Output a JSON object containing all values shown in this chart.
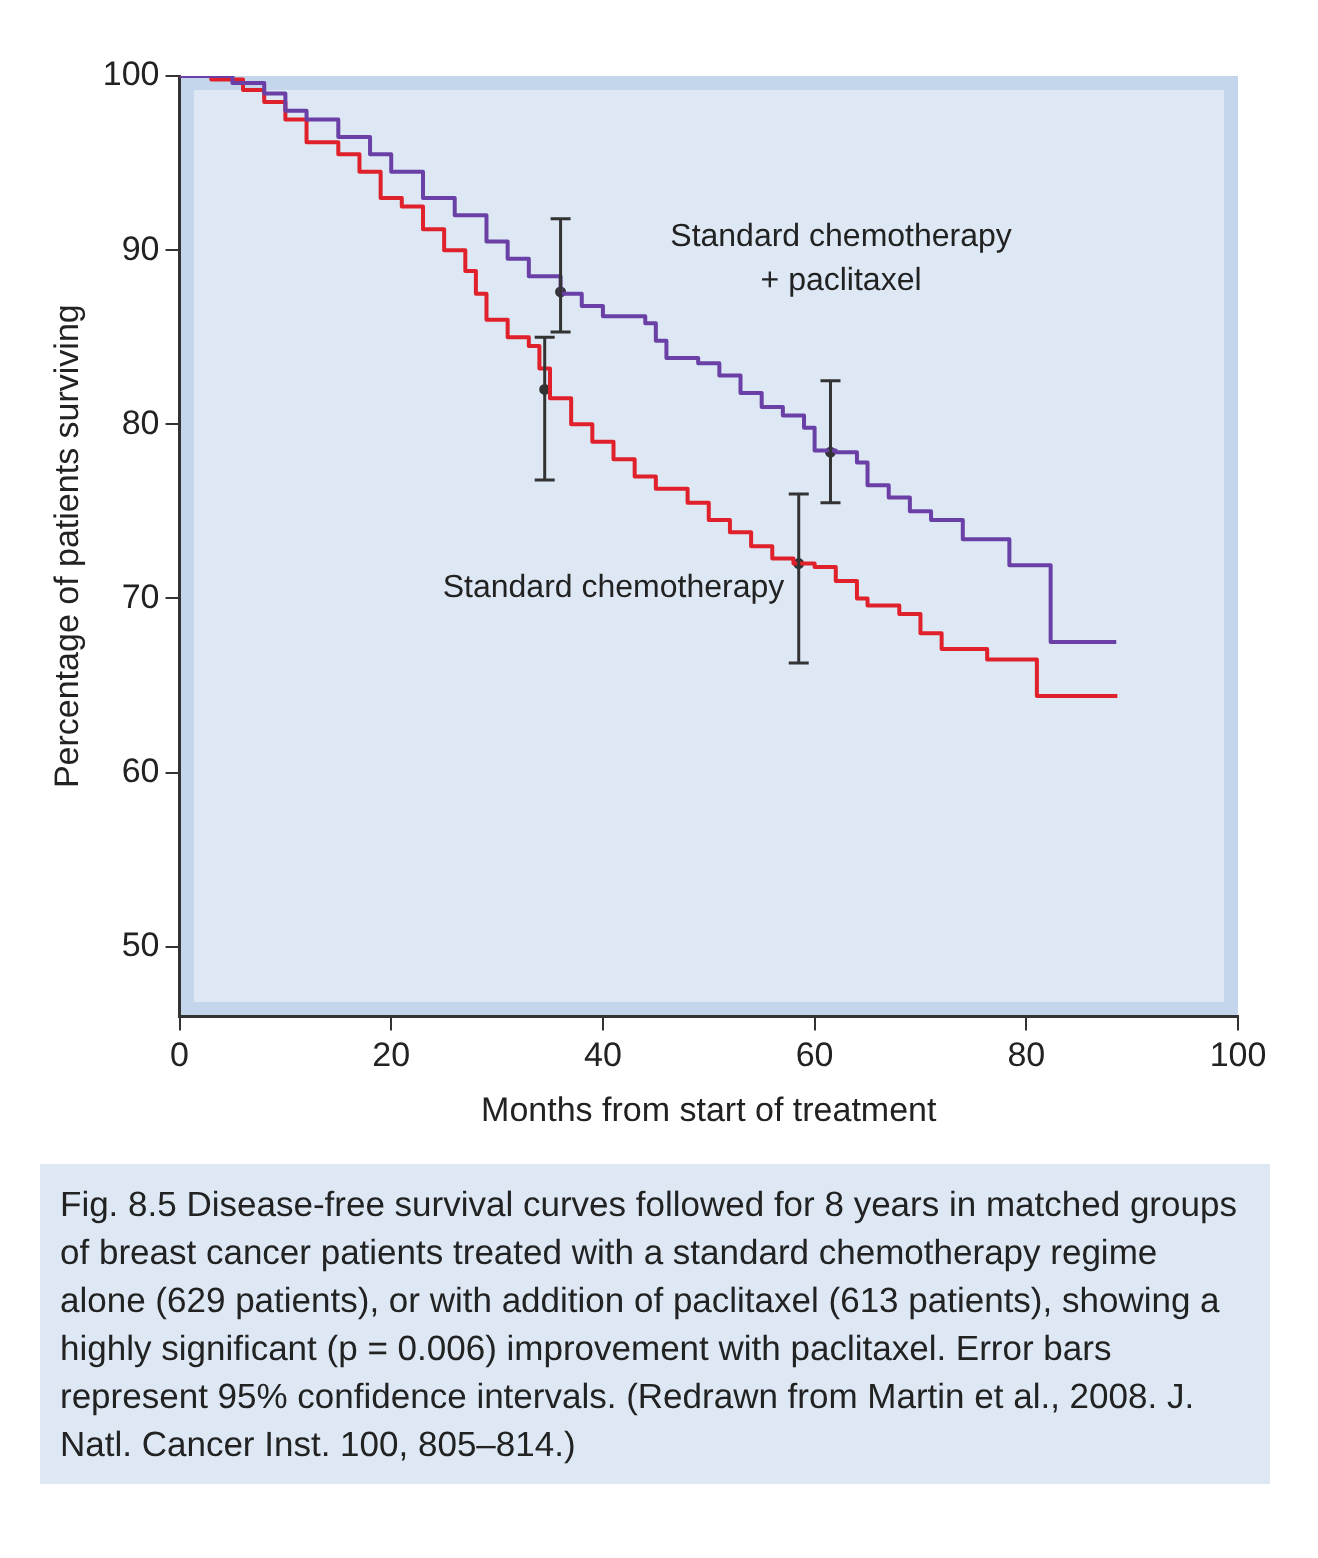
{
  "chart_data": {
    "type": "step",
    "xlabel": "Months from start of treatment",
    "ylabel": "Percentage of patients surviving",
    "xlim": [
      0,
      100
    ],
    "xticks": [
      0,
      20,
      40,
      60,
      80,
      100
    ],
    "ylim": [
      46,
      100
    ],
    "yticks": [
      50,
      60,
      70,
      80,
      90,
      100
    ],
    "grid": false,
    "legend": false,
    "series": [
      {
        "color": "#6a3fa6",
        "x": [
          0,
          5,
          8,
          10,
          12,
          15,
          18,
          20,
          23,
          26,
          29,
          31,
          33,
          36,
          38,
          40,
          44,
          45,
          46,
          49,
          51,
          53,
          55,
          57,
          59,
          60,
          62,
          64,
          65,
          67,
          69,
          71,
          74,
          78.4,
          82.3,
          88.5
        ],
        "values": [
          100,
          99.6,
          99,
          98,
          97.5,
          96.5,
          95.5,
          94.5,
          93,
          92,
          90.5,
          89.5,
          88.5,
          87.5,
          86.8,
          86.2,
          85.8,
          84.8,
          83.8,
          83.5,
          82.8,
          81.8,
          81,
          80.5,
          79.8,
          78.5,
          78.4,
          77.8,
          76.5,
          75.8,
          75,
          74.5,
          73.4,
          71.9,
          67.5,
          67.5
        ]
      },
      {
        "color": "#e0202a",
        "x": [
          0,
          3,
          6,
          8,
          10,
          12,
          15,
          17,
          19,
          21,
          23,
          25,
          27,
          28,
          29,
          31,
          33,
          34,
          35,
          37,
          39,
          41,
          43,
          45,
          48,
          50,
          52,
          54,
          56,
          58,
          60,
          62,
          64,
          65,
          68,
          70,
          72,
          76.3,
          81,
          88.6
        ],
        "values": [
          100,
          99.8,
          99.2,
          98.5,
          97.5,
          96.2,
          95.5,
          94.5,
          93,
          92.5,
          91.2,
          90,
          88.8,
          87.5,
          86,
          85,
          84.5,
          83.2,
          81.5,
          80,
          79,
          78,
          77,
          76.3,
          75.5,
          74.5,
          73.8,
          73,
          72.3,
          72,
          71.8,
          71,
          70,
          69.6,
          69.1,
          68,
          67.1,
          66.5,
          64.4,
          64.4
        ]
      },
      {
        "type": "scatter",
        "marker": "circle",
        "color": "#333333",
        "x": [
          36,
          34.5,
          61.5,
          58.5
        ],
        "values": [
          87.6,
          82,
          78.4,
          72
        ],
        "errors": [
          [
            85.3,
            91.8
          ],
          [
            76.8,
            85
          ],
          [
            75.5,
            82.5
          ],
          [
            66.3,
            76
          ]
        ]
      }
    ],
    "annotations": [
      "Standard chemotherapy\n+ paclitaxel",
      "Standard chemotherapy",
      "Fig. 8.5 Disease-free survival curves followed for 8 years in matched groups of breast cancer patients treated with a standard chemotherapy regime alone (629 patients), or with addition of paclitaxel (613 patients), showing a highly significant (p = 0.006) improvement with paclitaxel. Error bars represent 95% confidence intervals. (Redrawn from Martin et al., 2008. J. Natl. Cancer Inst. 100, 805–814.)"
    ]
  }
}
